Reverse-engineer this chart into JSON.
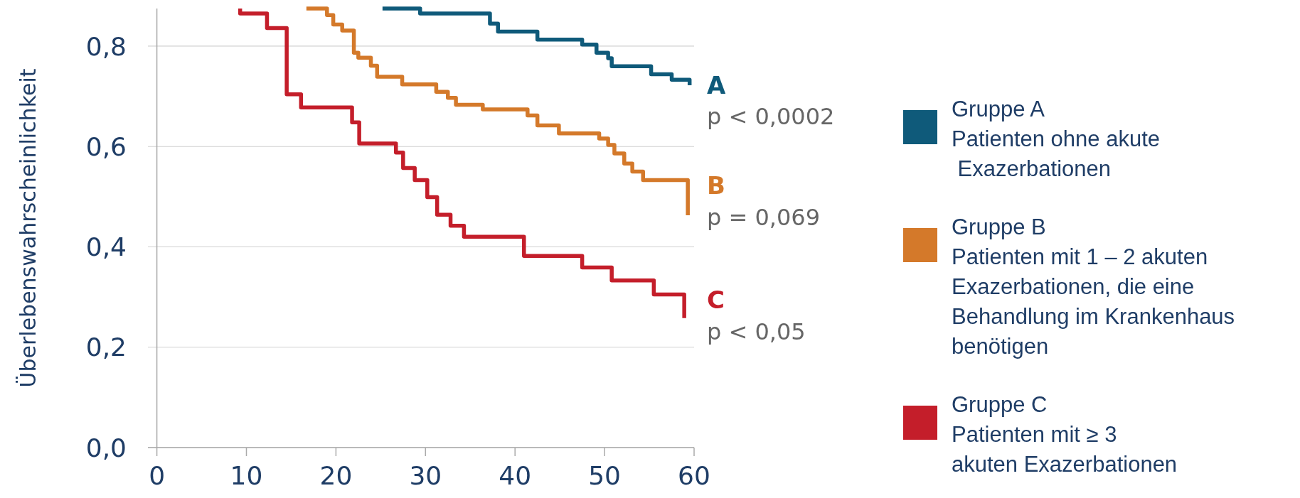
{
  "chart_data": {
    "type": "step",
    "ylabel": "Überlebenswahrscheinlichkeit",
    "xlim": [
      -1,
      60
    ],
    "xticks": [
      0,
      10,
      20,
      30,
      40,
      50,
      60
    ],
    "ylim": [
      0,
      0.875
    ],
    "yticks": [
      {
        "value": 0,
        "label": "0,0"
      },
      {
        "value": 0.2,
        "label": "0,2"
      },
      {
        "value": 0.4,
        "label": "0,4"
      },
      {
        "value": 0.6,
        "label": "0,6"
      },
      {
        "value": 0.8,
        "label": "0,8"
      }
    ],
    "grid": "y",
    "legend": "right",
    "line_style": "solid",
    "marker": "none",
    "series": [
      {
        "name": "Gruppe A\nPatienten ohne akute\n Exazerbationen",
        "color": "#0f5a7a",
        "x": [
          25.2,
          29.4,
          37.2,
          38.1,
          42.5,
          47.5,
          49.1,
          50.4,
          50.8,
          55.2,
          57.5,
          59.5
        ],
        "values": [
          0.875,
          0.865,
          0.845,
          0.829,
          0.813,
          0.803,
          0.787,
          0.776,
          0.76,
          0.744,
          0.733,
          0.722
        ]
      },
      {
        "name": "Gruppe B\nPatienten mit 1 – 2 akuten\nExazerbationen, die eine\nBehandlung im Krankenhaus\nbenötigen",
        "color": "#d4792a",
        "x": [
          16.7,
          19.0,
          19.7,
          20.7,
          22.0,
          22.5,
          23.9,
          24.6,
          27.4,
          31.2,
          32.5,
          33.4,
          36.4,
          41.4,
          42.5,
          44.9,
          49.4,
          50.4,
          51.1,
          52.2,
          53.1,
          54.3,
          59.3
        ],
        "values": [
          0.875,
          0.862,
          0.843,
          0.831,
          0.787,
          0.777,
          0.761,
          0.739,
          0.724,
          0.709,
          0.697,
          0.683,
          0.674,
          0.662,
          0.642,
          0.626,
          0.616,
          0.603,
          0.586,
          0.566,
          0.55,
          0.533,
          0.463
        ]
      },
      {
        "name": "Gruppe C\nPatienten mit ≥ 3\nakuten Exazerbationen",
        "color": "#c41e2a",
        "x": [
          9.3,
          9.3,
          12.3,
          14.5,
          16.1,
          21.8,
          22.6,
          26.7,
          27.5,
          28.8,
          30.2,
          31.3,
          32.8,
          34.3,
          41.0,
          47.5,
          50.8,
          55.5,
          58.9
        ],
        "values": [
          0.875,
          0.865,
          0.836,
          0.704,
          0.678,
          0.648,
          0.606,
          0.588,
          0.557,
          0.533,
          0.499,
          0.464,
          0.442,
          0.42,
          0.382,
          0.359,
          0.333,
          0.305,
          0.258
        ]
      }
    ],
    "annotations": [
      "A",
      "p < 0,0002",
      "B",
      "p = 0,069",
      "C",
      "p < 0,05"
    ]
  }
}
